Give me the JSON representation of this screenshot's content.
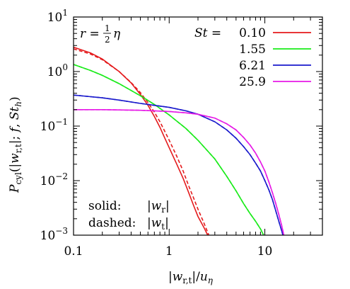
{
  "chart_data": {
    "type": "line",
    "xlabel": "|w_{r,t}|/u_η",
    "ylabel": "P_cyl(|w_{r,t}|; f, St_h)",
    "xscale": "log",
    "yscale": "log",
    "xlim": [
      0.1,
      40
    ],
    "ylim": [
      0.001,
      10
    ],
    "x_ticks": [
      0.1,
      1,
      10
    ],
    "x_tick_labels": [
      "0.1",
      "1",
      "10"
    ],
    "y_ticks": [
      0.001,
      0.01,
      0.1,
      1,
      10
    ],
    "y_tick_labels": [
      "10^-3",
      "10^-2",
      "10^-1",
      "10^0",
      "10^1"
    ],
    "grid": false,
    "legend_position": "top-right",
    "legend_header": "St =",
    "annotation_top": "r = ½η",
    "annotation_bottom": [
      {
        "label": "solid:",
        "value": "|w_r|"
      },
      {
        "label": "dashed:",
        "value": "|w_t|"
      }
    ],
    "series": [
      {
        "name": "0.10",
        "color": "#e41a1c",
        "solid": {
          "x": [
            0.1,
            0.15,
            0.2,
            0.3,
            0.4,
            0.5,
            0.6,
            0.7,
            0.8,
            0.9,
            1.0,
            1.2,
            1.4,
            1.6,
            1.8,
            2.0,
            2.3,
            2.6,
            2.8
          ],
          "y": [
            2.8,
            2.2,
            1.7,
            1.0,
            0.62,
            0.38,
            0.24,
            0.15,
            0.095,
            0.06,
            0.04,
            0.02,
            0.011,
            0.006,
            0.0035,
            0.0022,
            0.0014,
            0.0009,
            0.0006
          ]
        },
        "dashed": {
          "x": [
            0.1,
            0.15,
            0.2,
            0.3,
            0.4,
            0.5,
            0.6,
            0.7,
            0.8,
            0.9,
            1.0,
            1.2,
            1.4,
            1.6,
            1.8,
            2.0,
            2.3,
            2.6,
            2.9
          ],
          "y": [
            2.6,
            2.1,
            1.65,
            1.0,
            0.63,
            0.41,
            0.27,
            0.18,
            0.12,
            0.08,
            0.055,
            0.028,
            0.015,
            0.008,
            0.0048,
            0.003,
            0.0017,
            0.001,
            0.0006
          ]
        }
      },
      {
        "name": "1.55",
        "color": "#1aeb1a",
        "solid": {
          "x": [
            0.1,
            0.15,
            0.2,
            0.3,
            0.4,
            0.5,
            0.7,
            1.0,
            1.5,
            2,
            3,
            4,
            5,
            6,
            7,
            8,
            9,
            10,
            11
          ],
          "y": [
            1.35,
            1.05,
            0.85,
            0.6,
            0.45,
            0.36,
            0.25,
            0.16,
            0.09,
            0.055,
            0.025,
            0.012,
            0.0065,
            0.0038,
            0.0025,
            0.0018,
            0.0013,
            0.0009,
            0.0006
          ]
        },
        "dashed": {
          "x": [
            0.1,
            0.15,
            0.2,
            0.3,
            0.4,
            0.5,
            0.7,
            1.0,
            1.5,
            2,
            3,
            4,
            5,
            6,
            7,
            8,
            9,
            10,
            11
          ],
          "y": [
            1.35,
            1.05,
            0.85,
            0.6,
            0.45,
            0.36,
            0.25,
            0.16,
            0.09,
            0.055,
            0.025,
            0.012,
            0.0065,
            0.0038,
            0.0025,
            0.0018,
            0.0013,
            0.0009,
            0.0006
          ]
        }
      },
      {
        "name": "6.21",
        "color": "#1a1acc",
        "solid": {
          "x": [
            0.1,
            0.2,
            0.3,
            0.5,
            0.7,
            1,
            1.5,
            2,
            3,
            4,
            5,
            6,
            7,
            8,
            9,
            10,
            11,
            12,
            13,
            14,
            15,
            16,
            17
          ],
          "y": [
            0.37,
            0.33,
            0.3,
            0.26,
            0.24,
            0.22,
            0.19,
            0.165,
            0.12,
            0.085,
            0.06,
            0.042,
            0.03,
            0.021,
            0.015,
            0.01,
            0.0068,
            0.0045,
            0.0028,
            0.0018,
            0.0012,
            0.0008,
            0.0005
          ]
        },
        "dashed": {
          "x": [
            0.1,
            0.2,
            0.3,
            0.5,
            0.7,
            1,
            1.5,
            2,
            3,
            4,
            5,
            6,
            7,
            8,
            9,
            10,
            11,
            12,
            13,
            14,
            15,
            16,
            17
          ],
          "y": [
            0.37,
            0.33,
            0.3,
            0.26,
            0.24,
            0.22,
            0.19,
            0.165,
            0.12,
            0.085,
            0.06,
            0.042,
            0.03,
            0.021,
            0.015,
            0.01,
            0.0068,
            0.0045,
            0.0028,
            0.0018,
            0.0012,
            0.0008,
            0.0005
          ]
        }
      },
      {
        "name": "25.9",
        "color": "#e61ae6",
        "solid": {
          "x": [
            0.1,
            0.2,
            0.3,
            0.5,
            0.7,
            1,
            1.5,
            2,
            3,
            4,
            5,
            6,
            7,
            8,
            9,
            10,
            11,
            12,
            13,
            14,
            15,
            16,
            17
          ],
          "y": [
            0.2,
            0.2,
            0.198,
            0.195,
            0.19,
            0.185,
            0.175,
            0.165,
            0.14,
            0.11,
            0.085,
            0.062,
            0.045,
            0.032,
            0.022,
            0.015,
            0.0095,
            0.006,
            0.0038,
            0.0024,
            0.0015,
            0.0009,
            0.0005
          ]
        },
        "dashed": {
          "x": [
            0.1,
            0.2,
            0.3,
            0.5,
            0.7,
            1,
            1.5,
            2,
            3,
            4,
            5,
            6,
            7,
            8,
            9,
            10,
            11,
            12,
            13,
            14,
            15,
            16,
            17
          ],
          "y": [
            0.2,
            0.2,
            0.198,
            0.195,
            0.19,
            0.185,
            0.175,
            0.165,
            0.14,
            0.11,
            0.085,
            0.062,
            0.045,
            0.032,
            0.022,
            0.015,
            0.0095,
            0.006,
            0.0038,
            0.0024,
            0.0015,
            0.0009,
            0.0005
          ]
        }
      }
    ]
  }
}
